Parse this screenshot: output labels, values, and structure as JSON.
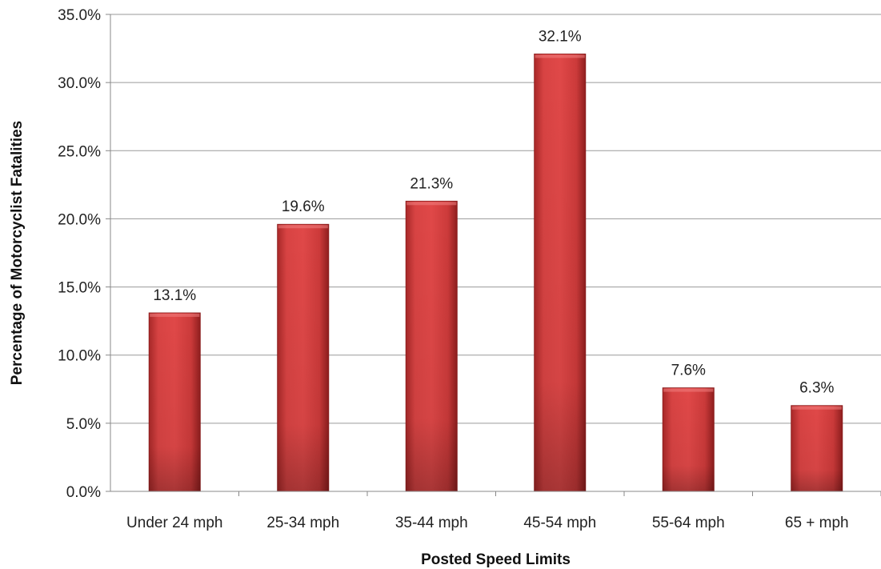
{
  "chart_data": {
    "type": "bar",
    "categories": [
      "Under 24 mph",
      "25-34 mph",
      "35-44 mph",
      "45-54 mph",
      "55-64 mph",
      "65 + mph"
    ],
    "values": [
      13.1,
      19.6,
      21.3,
      32.1,
      7.6,
      6.3
    ],
    "data_labels": [
      "13.1%",
      "19.6%",
      "21.3%",
      "32.1%",
      "7.6%",
      "6.3%"
    ],
    "xlabel": "Posted Speed Limits",
    "ylabel": "Percentage of Motorcyclist Fatalities",
    "ylim": [
      0,
      35
    ],
    "yticks": [
      0,
      5,
      10,
      15,
      20,
      25,
      30,
      35
    ],
    "ytick_labels": [
      "0.0%",
      "5.0%",
      "10.0%",
      "15.0%",
      "20.0%",
      "25.0%",
      "30.0%",
      "35.0%"
    ],
    "grid": true,
    "legend": "none",
    "bar_color": "#d94040",
    "bar_color_dark": "#9a2020",
    "grid_color": "#9a9a9a"
  }
}
